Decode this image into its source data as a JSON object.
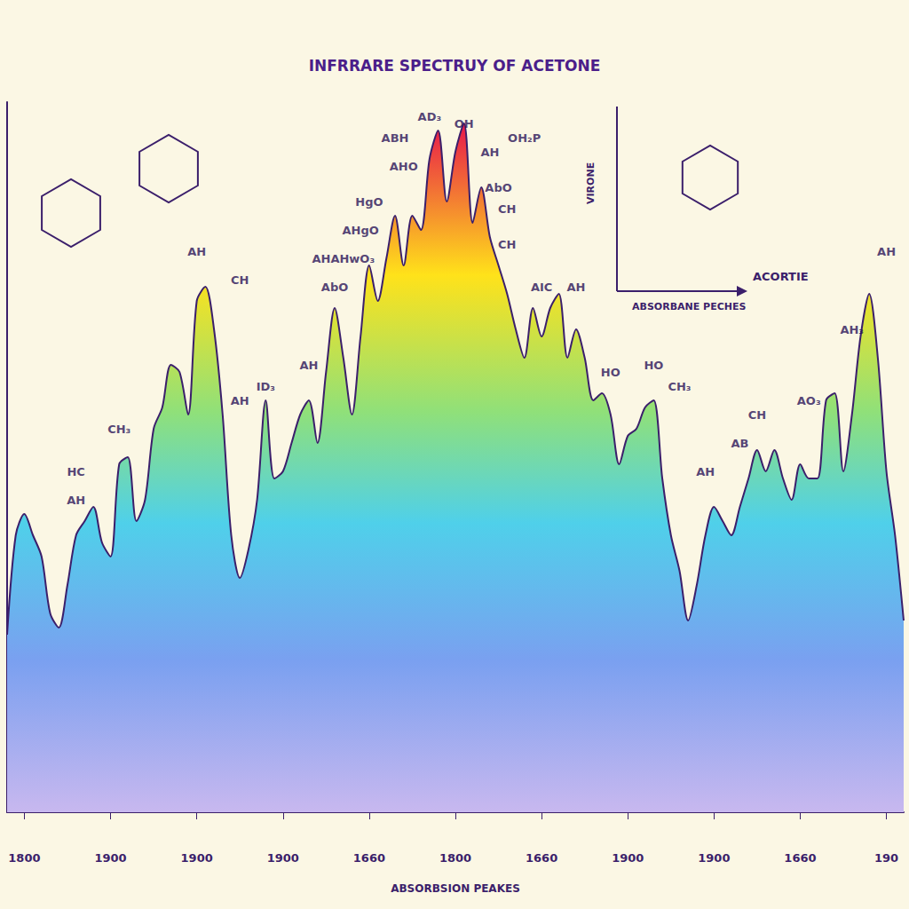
{
  "chart_data": {
    "type": "area",
    "title": "INFRRARE SPECTRUY OF ACETONE",
    "x_label": "ABSORBSION PEAKES",
    "categories": [
      null,
      null,
      "1800",
      null,
      null,
      null,
      null,
      null,
      null,
      null,
      null,
      null,
      "1900",
      null,
      null,
      null,
      null,
      null,
      null,
      null,
      null,
      null,
      "1900",
      null,
      null,
      null,
      null,
      null,
      null,
      null,
      null,
      null,
      "1900",
      null,
      null,
      null,
      null,
      null,
      null,
      null,
      null,
      null,
      "1660",
      null,
      null,
      null,
      null,
      null,
      null,
      null,
      null,
      null,
      "1800",
      null,
      null,
      null,
      null,
      null,
      null,
      null,
      null,
      null,
      "1660",
      null,
      null,
      null,
      null,
      null,
      null,
      null,
      null,
      null,
      "1900",
      null,
      null,
      null,
      null,
      null,
      null,
      null,
      null,
      null,
      "1900",
      null,
      null,
      null,
      null,
      null,
      null,
      null,
      null,
      null,
      "1660",
      null,
      null,
      null,
      null,
      null,
      null,
      null,
      null,
      null,
      "190",
      null,
      null
    ],
    "values": [
      25,
      39,
      42,
      39,
      36,
      28,
      26,
      32,
      39,
      41,
      43,
      38,
      36,
      49,
      50,
      41,
      44,
      54,
      57,
      63,
      62,
      56,
      72,
      74,
      68,
      56,
      39,
      33,
      37,
      44,
      58,
      47,
      48,
      52,
      56,
      58,
      52,
      62,
      71,
      64,
      56,
      67,
      77,
      72,
      78,
      84,
      77,
      84,
      82,
      92,
      96,
      86,
      93,
      97,
      83,
      88,
      81,
      77,
      73,
      68,
      64,
      71,
      67,
      71,
      73,
      64,
      68,
      64,
      58,
      59,
      56,
      49,
      53,
      54,
      57,
      58,
      47,
      39,
      34,
      27,
      32,
      39,
      43,
      41,
      39,
      43,
      47,
      51,
      48,
      51,
      47,
      44,
      49,
      47,
      47,
      58,
      59,
      48,
      56,
      67,
      73,
      64,
      48,
      39,
      27
    ],
    "color": "#3b1f6b",
    "ylim": [
      0,
      100
    ],
    "tick_labels": "x",
    "grid": false,
    "annotations": [
      {
        "text": "HC",
        "x": 8,
        "y": 48
      },
      {
        "text": "AH",
        "x": 8,
        "y": 44
      },
      {
        "text": "CH₃",
        "x": 13,
        "y": 54
      },
      {
        "text": "AH",
        "x": 22,
        "y": 79
      },
      {
        "text": "CH",
        "x": 27,
        "y": 75
      },
      {
        "text": "AH",
        "x": 27,
        "y": 58
      },
      {
        "text": "ID₃",
        "x": 30,
        "y": 60
      },
      {
        "text": "AH",
        "x": 35,
        "y": 63
      },
      {
        "text": "AbO",
        "x": 38,
        "y": 74
      },
      {
        "text": "AHAHwO₃",
        "x": 39,
        "y": 78
      },
      {
        "text": "AHgO",
        "x": 41,
        "y": 82
      },
      {
        "text": "HgO",
        "x": 42,
        "y": 86
      },
      {
        "text": "ABH",
        "x": 45,
        "y": 95
      },
      {
        "text": "AHO",
        "x": 46,
        "y": 91
      },
      {
        "text": "AD₃",
        "x": 49,
        "y": 98
      },
      {
        "text": "OH",
        "x": 53,
        "y": 97
      },
      {
        "text": "AH",
        "x": 56,
        "y": 93
      },
      {
        "text": "OH₂P",
        "x": 60,
        "y": 95
      },
      {
        "text": "AbO",
        "x": 57,
        "y": 88
      },
      {
        "text": "CH",
        "x": 58,
        "y": 85
      },
      {
        "text": "CH",
        "x": 58,
        "y": 80
      },
      {
        "text": "AIC",
        "x": 62,
        "y": 74
      },
      {
        "text": "AH",
        "x": 66,
        "y": 74
      },
      {
        "text": "HO",
        "x": 70,
        "y": 62
      },
      {
        "text": "HO",
        "x": 75,
        "y": 63
      },
      {
        "text": "CH₃",
        "x": 78,
        "y": 60
      },
      {
        "text": "AH",
        "x": 81,
        "y": 48
      },
      {
        "text": "AB",
        "x": 85,
        "y": 52
      },
      {
        "text": "CH",
        "x": 87,
        "y": 56
      },
      {
        "text": "AO₃",
        "x": 93,
        "y": 58
      },
      {
        "text": "AH₃",
        "x": 98,
        "y": 68
      },
      {
        "text": "AH",
        "x": 102,
        "y": 79
      }
    ],
    "inset": {
      "y_label": "VIRONE",
      "x_label": "ABSORBANE PECHES",
      "caption": "ACORTIE"
    }
  }
}
